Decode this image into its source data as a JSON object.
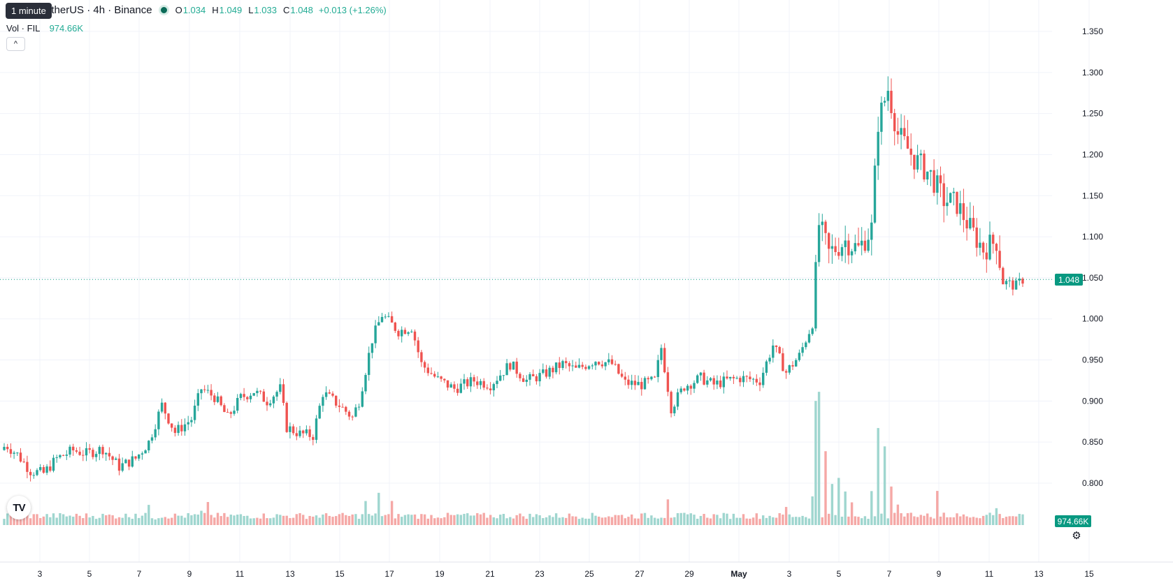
{
  "header": {
    "symbol_title": "etherUS · 4h · Binance",
    "tooltip": "1 minute",
    "ohlc": [
      {
        "key": "O",
        "value": "1.034"
      },
      {
        "key": "H",
        "value": "1.049"
      },
      {
        "key": "L",
        "value": "1.033"
      },
      {
        "key": "C",
        "value": "1.048"
      }
    ],
    "change": "+0.013 (+1.26%)"
  },
  "volume_legend": {
    "label": "Vol · FIL",
    "value": "974.66K"
  },
  "current_price_label": "1.048",
  "current_volume_label": "974.66K",
  "colors": {
    "up": "#26a69a",
    "down": "#ef5350",
    "up_volume": "#9fd6cf",
    "down_volume": "#f5a8a6",
    "badge": "#089981"
  },
  "icons": {
    "logo": "tradingview-logo-icon",
    "settings": "gear-icon",
    "collapse": "chevron-up-icon"
  },
  "chart_data": {
    "type": "candlestick",
    "title": "",
    "y_axis": {
      "ticks": [
        "0.800",
        "0.850",
        "0.900",
        "0.950",
        "1.000",
        "1.050",
        "1.100",
        "1.150",
        "1.200",
        "1.250",
        "1.300",
        "1.350"
      ],
      "range": [
        0.765,
        1.37
      ]
    },
    "x_axis": {
      "ticks": [
        "3",
        "5",
        "7",
        "9",
        "11",
        "13",
        "15",
        "17",
        "19",
        "21",
        "23",
        "25",
        "27",
        "29",
        "May",
        "3",
        "5",
        "7",
        "9",
        "11",
        "13",
        "15"
      ]
    },
    "current_price": 1.048,
    "series_anchors": [
      [
        1,
        0.845
      ],
      [
        4,
        0.835
      ],
      [
        8,
        0.815
      ],
      [
        12,
        0.812
      ],
      [
        16,
        0.83
      ],
      [
        21,
        0.84
      ],
      [
        25,
        0.836
      ],
      [
        30,
        0.842
      ],
      [
        35,
        0.82
      ],
      [
        40,
        0.83
      ],
      [
        44,
        0.85
      ],
      [
        48,
        0.895
      ],
      [
        52,
        0.862
      ],
      [
        57,
        0.878
      ],
      [
        60,
        0.915
      ],
      [
        64,
        0.905
      ],
      [
        68,
        0.88
      ],
      [
        72,
        0.904
      ],
      [
        76,
        0.912
      ],
      [
        80,
        0.9
      ],
      [
        84,
        0.915
      ],
      [
        86,
        0.868
      ],
      [
        90,
        0.86
      ],
      [
        94,
        0.858
      ],
      [
        97,
        0.91
      ],
      [
        102,
        0.895
      ],
      [
        106,
        0.88
      ],
      [
        108,
        0.9
      ],
      [
        112,
        0.975
      ],
      [
        115,
        1.005
      ],
      [
        120,
        0.985
      ],
      [
        124,
        0.99
      ],
      [
        127,
        0.945
      ],
      [
        132,
        0.926
      ],
      [
        137,
        0.915
      ],
      [
        143,
        0.925
      ],
      [
        148,
        0.92
      ],
      [
        154,
        0.945
      ],
      [
        159,
        0.925
      ],
      [
        164,
        0.932
      ],
      [
        170,
        0.945
      ],
      [
        174,
        0.938
      ],
      [
        180,
        0.95
      ],
      [
        185,
        0.945
      ],
      [
        189,
        0.922
      ],
      [
        194,
        0.92
      ],
      [
        198,
        0.925
      ],
      [
        200,
        0.965
      ],
      [
        203,
        0.892
      ],
      [
        207,
        0.918
      ],
      [
        212,
        0.928
      ],
      [
        216,
        0.92
      ],
      [
        220,
        0.925
      ],
      [
        224,
        0.928
      ],
      [
        230,
        0.925
      ],
      [
        234,
        0.968
      ],
      [
        238,
        0.935
      ],
      [
        242,
        0.955
      ],
      [
        246,
        0.995
      ],
      [
        248,
        1.115
      ],
      [
        251,
        1.08
      ],
      [
        256,
        1.095
      ],
      [
        260,
        1.085
      ],
      [
        264,
        1.11
      ],
      [
        266,
        1.24
      ],
      [
        269,
        1.28
      ],
      [
        272,
        1.225
      ],
      [
        277,
        1.195
      ],
      [
        282,
        1.175
      ],
      [
        286,
        1.145
      ],
      [
        290,
        1.14
      ],
      [
        294,
        1.11
      ],
      [
        298,
        1.085
      ],
      [
        302,
        1.095
      ],
      [
        304,
        1.045
      ],
      [
        308,
        1.04
      ],
      [
        310,
        1.048
      ]
    ],
    "volume_anchors": [
      [
        0,
        3
      ],
      [
        20,
        4
      ],
      [
        40,
        6
      ],
      [
        44,
        12
      ],
      [
        46,
        3
      ],
      [
        60,
        6
      ],
      [
        62,
        14
      ],
      [
        64,
        4
      ],
      [
        100,
        5
      ],
      [
        110,
        14
      ],
      [
        114,
        20
      ],
      [
        118,
        12
      ],
      [
        124,
        6
      ],
      [
        140,
        5
      ],
      [
        200,
        4
      ],
      [
        202,
        16
      ],
      [
        206,
        4
      ],
      [
        236,
        4
      ],
      [
        238,
        10
      ],
      [
        246,
        16
      ],
      [
        247,
        78
      ],
      [
        248,
        85
      ],
      [
        250,
        48
      ],
      [
        252,
        24
      ],
      [
        254,
        28
      ],
      [
        256,
        18
      ],
      [
        258,
        12
      ],
      [
        264,
        22
      ],
      [
        266,
        60
      ],
      [
        268,
        48
      ],
      [
        270,
        25
      ],
      [
        272,
        12
      ],
      [
        276,
        8
      ],
      [
        284,
        22
      ],
      [
        286,
        6
      ],
      [
        300,
        6
      ],
      [
        302,
        10
      ],
      [
        304,
        4
      ],
      [
        310,
        3
      ]
    ]
  }
}
